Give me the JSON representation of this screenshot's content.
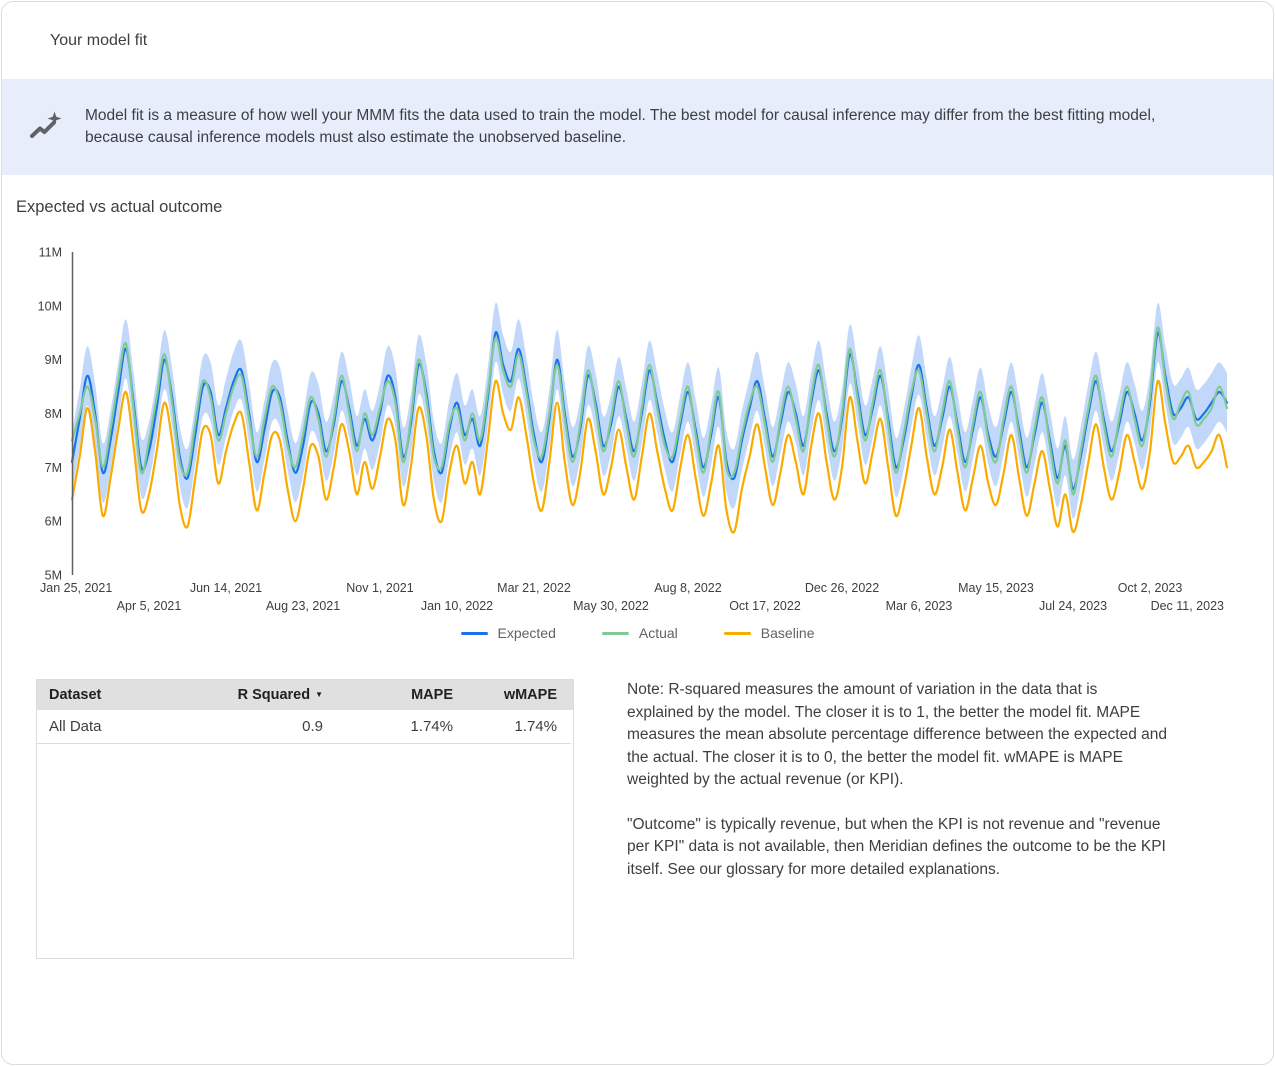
{
  "card": {
    "title": "Your model fit"
  },
  "banner": {
    "icon": "insights-icon",
    "background": "#e7edfb",
    "text": "Model fit is a measure of how well your MMM fits the data used to train the model. The best model for causal inference may differ from the best fitting model, because causal inference models must also estimate the unobserved baseline."
  },
  "chart": {
    "title": "Expected vs actual outcome"
  },
  "chart_data": {
    "type": "line",
    "title": "Expected vs actual outcome",
    "x_points": 151,
    "x_interval": "weekly",
    "x_tick_every_n_points": 10,
    "x_tick_labels": [
      "Jan 25, 2021",
      "Apr 5, 2021",
      "Jun 14, 2021",
      "Aug 23, 2021",
      "Nov 1, 2021",
      "Jan 10, 2022",
      "Mar 21, 2022",
      "May 30, 2022",
      "Aug 8, 2022",
      "Oct 17, 2022",
      "Dec 26, 2022",
      "Mar 6, 2023",
      "May 15, 2023",
      "Jul 24, 2023",
      "Oct 2, 2023",
      "Dec 11, 2023"
    ],
    "y_tick_labels": [
      "5M",
      "6M",
      "7M",
      "8M",
      "9M",
      "10M",
      "11M"
    ],
    "ylim": [
      5,
      11
    ],
    "unit": "millions",
    "grid": false,
    "legend_position": "bottom",
    "band": {
      "around_series": "Expected",
      "halfwidth": 0.55,
      "color": "#aecbfa",
      "opacity": 0.75
    },
    "axis_color": "#616161",
    "label_color": "#3c4043",
    "series": [
      {
        "name": "Expected",
        "color": "#1a73e8",
        "values": [
          7.1,
          7.9,
          8.7,
          8.0,
          6.9,
          7.5,
          8.4,
          9.2,
          8.2,
          7.0,
          7.3,
          8.1,
          9.0,
          8.3,
          7.2,
          6.8,
          7.6,
          8.5,
          8.4,
          7.6,
          8.1,
          8.6,
          8.8,
          8.0,
          7.1,
          7.7,
          8.4,
          8.3,
          7.5,
          6.9,
          7.4,
          8.2,
          8.0,
          7.3,
          7.8,
          8.6,
          8.1,
          7.4,
          7.9,
          7.5,
          8.0,
          8.7,
          8.3,
          7.2,
          7.8,
          8.9,
          8.4,
          7.3,
          6.9,
          7.7,
          8.2,
          7.6,
          7.9,
          7.4,
          8.3,
          9.5,
          8.9,
          8.6,
          9.2,
          8.5,
          7.6,
          7.1,
          7.9,
          9.0,
          8.0,
          7.2,
          7.7,
          8.7,
          8.2,
          7.4,
          7.8,
          8.5,
          7.9,
          7.3,
          8.0,
          8.8,
          8.2,
          7.5,
          7.1,
          7.8,
          8.4,
          7.7,
          7.0,
          7.6,
          8.3,
          7.1,
          6.8,
          7.5,
          8.1,
          8.6,
          7.9,
          7.2,
          7.8,
          8.4,
          8.0,
          7.4,
          8.2,
          8.8,
          8.0,
          7.3,
          7.9,
          9.1,
          8.4,
          7.6,
          8.1,
          8.7,
          7.9,
          7.0,
          7.5,
          8.3,
          8.9,
          8.1,
          7.4,
          7.9,
          8.5,
          7.8,
          7.1,
          7.7,
          8.3,
          7.6,
          7.2,
          7.8,
          8.4,
          7.7,
          7.0,
          7.6,
          8.2,
          7.5,
          6.8,
          7.4,
          6.6,
          7.2,
          8.0,
          8.6,
          7.9,
          7.3,
          7.8,
          8.4,
          8.0,
          7.5,
          8.2,
          9.5,
          8.7,
          8.0,
          8.1,
          8.3,
          7.9,
          8.0,
          8.2,
          8.4,
          8.2
        ]
      },
      {
        "name": "Actual",
        "color": "#81c995",
        "values": [
          7.5,
          8.0,
          8.5,
          7.9,
          7.0,
          7.7,
          8.6,
          9.3,
          8.1,
          6.9,
          7.5,
          8.3,
          9.1,
          8.2,
          7.1,
          6.9,
          7.8,
          8.6,
          8.3,
          7.5,
          8.0,
          8.5,
          8.7,
          7.9,
          7.2,
          7.9,
          8.5,
          8.2,
          7.4,
          7.0,
          7.6,
          8.3,
          7.9,
          7.2,
          7.9,
          8.7,
          8.0,
          7.3,
          8.0,
          7.6,
          8.1,
          8.6,
          8.2,
          7.1,
          7.9,
          9.0,
          8.3,
          7.2,
          7.0,
          7.8,
          8.1,
          7.5,
          8.0,
          7.5,
          8.4,
          9.4,
          8.8,
          8.5,
          9.1,
          8.4,
          7.5,
          7.2,
          8.0,
          8.9,
          7.9,
          7.1,
          7.8,
          8.8,
          8.1,
          7.3,
          7.9,
          8.6,
          7.8,
          7.2,
          8.1,
          8.9,
          8.1,
          7.4,
          7.2,
          7.9,
          8.5,
          7.6,
          6.9,
          7.7,
          8.4,
          7.0,
          6.9,
          7.6,
          8.2,
          8.5,
          7.8,
          7.1,
          7.9,
          8.5,
          7.9,
          7.3,
          8.3,
          8.9,
          7.9,
          7.2,
          8.0,
          9.2,
          8.3,
          7.5,
          8.2,
          8.8,
          7.8,
          6.9,
          7.6,
          8.4,
          8.8,
          8.0,
          7.3,
          8.0,
          8.6,
          7.7,
          7.0,
          7.8,
          8.4,
          7.5,
          7.1,
          7.9,
          8.5,
          7.6,
          6.9,
          7.7,
          8.3,
          7.4,
          6.7,
          7.5,
          6.5,
          7.3,
          8.1,
          8.7,
          7.8,
          7.2,
          7.9,
          8.5,
          7.9,
          7.4,
          8.3,
          9.6,
          8.6,
          7.9,
          8.2,
          8.4,
          7.8,
          7.9,
          8.1,
          8.5,
          8.1
        ]
      },
      {
        "name": "Baseline",
        "color": "#f9ab00",
        "values": [
          6.4,
          7.2,
          8.1,
          7.3,
          6.1,
          6.8,
          7.7,
          8.4,
          7.4,
          6.2,
          6.5,
          7.3,
          8.2,
          7.5,
          6.3,
          5.9,
          6.8,
          7.7,
          7.6,
          6.7,
          7.3,
          7.8,
          8.0,
          7.1,
          6.2,
          6.9,
          7.6,
          7.5,
          6.6,
          6.0,
          6.6,
          7.4,
          7.2,
          6.4,
          7.0,
          7.8,
          7.3,
          6.5,
          7.1,
          6.6,
          7.2,
          7.9,
          7.5,
          6.3,
          7.0,
          8.1,
          7.6,
          6.4,
          6.0,
          6.9,
          7.4,
          6.7,
          7.1,
          6.5,
          7.5,
          8.6,
          8.0,
          7.7,
          8.3,
          7.6,
          6.7,
          6.2,
          7.1,
          8.2,
          7.1,
          6.3,
          6.9,
          7.9,
          7.3,
          6.5,
          7.0,
          7.7,
          7.0,
          6.4,
          7.2,
          8.0,
          7.3,
          6.6,
          6.2,
          7.0,
          7.6,
          6.8,
          6.1,
          6.7,
          7.4,
          6.2,
          5.8,
          6.6,
          7.2,
          7.8,
          7.0,
          6.3,
          6.9,
          7.6,
          7.1,
          6.5,
          7.4,
          8.0,
          7.1,
          6.4,
          7.0,
          8.3,
          7.5,
          6.7,
          7.3,
          7.9,
          7.0,
          6.1,
          6.6,
          7.4,
          8.1,
          7.2,
          6.5,
          7.0,
          7.7,
          6.9,
          6.2,
          6.8,
          7.4,
          6.7,
          6.3,
          6.9,
          7.6,
          6.8,
          6.1,
          6.7,
          7.3,
          6.6,
          5.9,
          6.5,
          5.8,
          6.3,
          7.1,
          7.8,
          7.0,
          6.4,
          6.9,
          7.6,
          7.1,
          6.6,
          7.3,
          8.6,
          7.8,
          7.1,
          7.2,
          7.4,
          7.0,
          7.1,
          7.3,
          7.6,
          7.0
        ]
      }
    ]
  },
  "table": {
    "headers": [
      "Dataset",
      "R Squared",
      "MAPE",
      "wMAPE"
    ],
    "sort_column": "R Squared",
    "sort_icon": "arrow-drop-down-icon",
    "sort_glyph": "▼",
    "rows": [
      [
        "All Data",
        "0.9",
        "1.74%",
        "1.74%"
      ]
    ]
  },
  "note": {
    "paragraph1": "Note: R-squared measures the amount of variation in the data that is explained by the model. The closer it is to 1, the better the model fit. MAPE measures the mean absolute percentage difference between the expected and the actual. The closer it is to 0, the better the model fit. wMAPE is MAPE weighted by the actual revenue (or KPI).",
    "paragraph2": "\"Outcome\" is typically revenue, but when the KPI is not revenue and \"revenue per KPI\" data is not available, then Meridian defines the outcome to be the KPI itself. See our glossary for more detailed explanations."
  }
}
